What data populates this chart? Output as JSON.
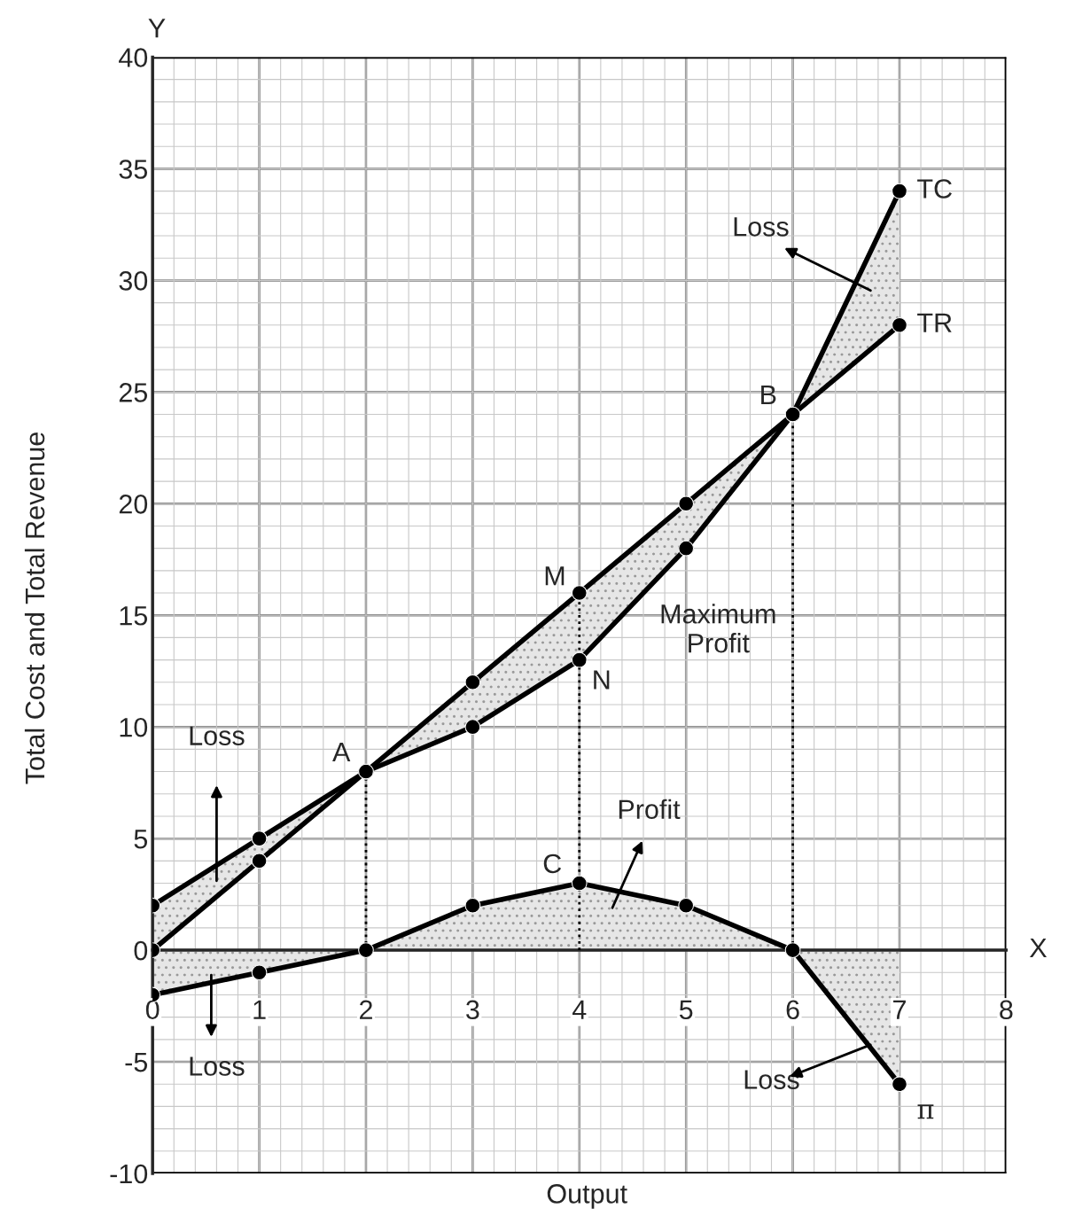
{
  "chart_data": {
    "type": "line",
    "xlabel": "Output",
    "ylabel": "Total Cost and Total Revenue",
    "x": [
      0,
      1,
      2,
      3,
      4,
      5,
      6,
      7
    ],
    "series": [
      {
        "name": "TC",
        "color": "#000000",
        "values": [
          2,
          5,
          8,
          10,
          13,
          18,
          24,
          34
        ]
      },
      {
        "name": "TR",
        "color": "#000000",
        "values": [
          0,
          4,
          8,
          12,
          16,
          20,
          24,
          28
        ]
      },
      {
        "name": "π",
        "color": "#000000",
        "values": [
          -2,
          -1,
          0,
          2,
          3,
          2,
          0,
          -6
        ]
      }
    ],
    "xlim": [
      0,
      8
    ],
    "ylim": [
      -10,
      40
    ],
    "xticks": [
      0,
      1,
      2,
      3,
      4,
      5,
      6,
      7,
      8
    ],
    "yticks": [
      -10,
      -5,
      0,
      5,
      10,
      15,
      20,
      25,
      30,
      35,
      40
    ],
    "grid": true,
    "legend": false,
    "marker": "circle",
    "line_style": "solid",
    "ref_lines": [
      {
        "axis": "x",
        "value": 2,
        "line_style": "dotted",
        "color": "#000000"
      },
      {
        "axis": "x",
        "value": 4,
        "line_style": "dotted",
        "color": "#000000"
      },
      {
        "axis": "x",
        "value": 6,
        "line_style": "dotted",
        "color": "#000000"
      }
    ],
    "annotations": [
      {
        "text": "A",
        "x": 2,
        "y": 8
      },
      {
        "text": "B",
        "x": 6,
        "y": 24
      },
      {
        "text": "M",
        "x": 4,
        "y": 16
      },
      {
        "text": "N",
        "x": 4,
        "y": 13
      },
      {
        "text": "C",
        "x": 4,
        "y": 3
      },
      "Loss",
      "Loss",
      "Loss",
      "Loss",
      "Profit",
      "Maximum\nProfit",
      "X",
      "Y"
    ]
  }
}
